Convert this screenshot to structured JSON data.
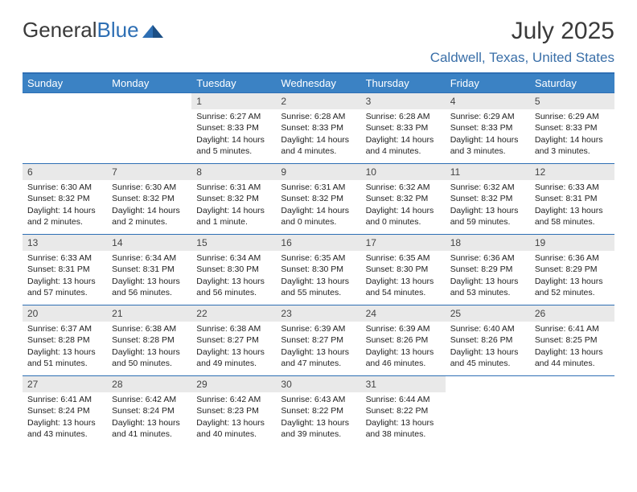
{
  "brand": {
    "part1": "General",
    "part2": "Blue",
    "text_color": "#3a3a3a",
    "accent_color": "#2e6fb4"
  },
  "title": "July 2025",
  "location": "Caldwell, Texas, United States",
  "colors": {
    "header_bg": "#3b82c4",
    "header_text": "#ffffff",
    "daynum_bg": "#e9e9e9",
    "border": "#2e6fb4",
    "location_text": "#3a6fa8"
  },
  "days_of_week": [
    "Sunday",
    "Monday",
    "Tuesday",
    "Wednesday",
    "Thursday",
    "Friday",
    "Saturday"
  ],
  "weeks": [
    [
      {
        "n": "",
        "sr": "",
        "ss": "",
        "dl": ""
      },
      {
        "n": "",
        "sr": "",
        "ss": "",
        "dl": ""
      },
      {
        "n": "1",
        "sr": "Sunrise: 6:27 AM",
        "ss": "Sunset: 8:33 PM",
        "dl": "Daylight: 14 hours and 5 minutes."
      },
      {
        "n": "2",
        "sr": "Sunrise: 6:28 AM",
        "ss": "Sunset: 8:33 PM",
        "dl": "Daylight: 14 hours and 4 minutes."
      },
      {
        "n": "3",
        "sr": "Sunrise: 6:28 AM",
        "ss": "Sunset: 8:33 PM",
        "dl": "Daylight: 14 hours and 4 minutes."
      },
      {
        "n": "4",
        "sr": "Sunrise: 6:29 AM",
        "ss": "Sunset: 8:33 PM",
        "dl": "Daylight: 14 hours and 3 minutes."
      },
      {
        "n": "5",
        "sr": "Sunrise: 6:29 AM",
        "ss": "Sunset: 8:33 PM",
        "dl": "Daylight: 14 hours and 3 minutes."
      }
    ],
    [
      {
        "n": "6",
        "sr": "Sunrise: 6:30 AM",
        "ss": "Sunset: 8:32 PM",
        "dl": "Daylight: 14 hours and 2 minutes."
      },
      {
        "n": "7",
        "sr": "Sunrise: 6:30 AM",
        "ss": "Sunset: 8:32 PM",
        "dl": "Daylight: 14 hours and 2 minutes."
      },
      {
        "n": "8",
        "sr": "Sunrise: 6:31 AM",
        "ss": "Sunset: 8:32 PM",
        "dl": "Daylight: 14 hours and 1 minute."
      },
      {
        "n": "9",
        "sr": "Sunrise: 6:31 AM",
        "ss": "Sunset: 8:32 PM",
        "dl": "Daylight: 14 hours and 0 minutes."
      },
      {
        "n": "10",
        "sr": "Sunrise: 6:32 AM",
        "ss": "Sunset: 8:32 PM",
        "dl": "Daylight: 14 hours and 0 minutes."
      },
      {
        "n": "11",
        "sr": "Sunrise: 6:32 AM",
        "ss": "Sunset: 8:32 PM",
        "dl": "Daylight: 13 hours and 59 minutes."
      },
      {
        "n": "12",
        "sr": "Sunrise: 6:33 AM",
        "ss": "Sunset: 8:31 PM",
        "dl": "Daylight: 13 hours and 58 minutes."
      }
    ],
    [
      {
        "n": "13",
        "sr": "Sunrise: 6:33 AM",
        "ss": "Sunset: 8:31 PM",
        "dl": "Daylight: 13 hours and 57 minutes."
      },
      {
        "n": "14",
        "sr": "Sunrise: 6:34 AM",
        "ss": "Sunset: 8:31 PM",
        "dl": "Daylight: 13 hours and 56 minutes."
      },
      {
        "n": "15",
        "sr": "Sunrise: 6:34 AM",
        "ss": "Sunset: 8:30 PM",
        "dl": "Daylight: 13 hours and 56 minutes."
      },
      {
        "n": "16",
        "sr": "Sunrise: 6:35 AM",
        "ss": "Sunset: 8:30 PM",
        "dl": "Daylight: 13 hours and 55 minutes."
      },
      {
        "n": "17",
        "sr": "Sunrise: 6:35 AM",
        "ss": "Sunset: 8:30 PM",
        "dl": "Daylight: 13 hours and 54 minutes."
      },
      {
        "n": "18",
        "sr": "Sunrise: 6:36 AM",
        "ss": "Sunset: 8:29 PM",
        "dl": "Daylight: 13 hours and 53 minutes."
      },
      {
        "n": "19",
        "sr": "Sunrise: 6:36 AM",
        "ss": "Sunset: 8:29 PM",
        "dl": "Daylight: 13 hours and 52 minutes."
      }
    ],
    [
      {
        "n": "20",
        "sr": "Sunrise: 6:37 AM",
        "ss": "Sunset: 8:28 PM",
        "dl": "Daylight: 13 hours and 51 minutes."
      },
      {
        "n": "21",
        "sr": "Sunrise: 6:38 AM",
        "ss": "Sunset: 8:28 PM",
        "dl": "Daylight: 13 hours and 50 minutes."
      },
      {
        "n": "22",
        "sr": "Sunrise: 6:38 AM",
        "ss": "Sunset: 8:27 PM",
        "dl": "Daylight: 13 hours and 49 minutes."
      },
      {
        "n": "23",
        "sr": "Sunrise: 6:39 AM",
        "ss": "Sunset: 8:27 PM",
        "dl": "Daylight: 13 hours and 47 minutes."
      },
      {
        "n": "24",
        "sr": "Sunrise: 6:39 AM",
        "ss": "Sunset: 8:26 PM",
        "dl": "Daylight: 13 hours and 46 minutes."
      },
      {
        "n": "25",
        "sr": "Sunrise: 6:40 AM",
        "ss": "Sunset: 8:26 PM",
        "dl": "Daylight: 13 hours and 45 minutes."
      },
      {
        "n": "26",
        "sr": "Sunrise: 6:41 AM",
        "ss": "Sunset: 8:25 PM",
        "dl": "Daylight: 13 hours and 44 minutes."
      }
    ],
    [
      {
        "n": "27",
        "sr": "Sunrise: 6:41 AM",
        "ss": "Sunset: 8:24 PM",
        "dl": "Daylight: 13 hours and 43 minutes."
      },
      {
        "n": "28",
        "sr": "Sunrise: 6:42 AM",
        "ss": "Sunset: 8:24 PM",
        "dl": "Daylight: 13 hours and 41 minutes."
      },
      {
        "n": "29",
        "sr": "Sunrise: 6:42 AM",
        "ss": "Sunset: 8:23 PM",
        "dl": "Daylight: 13 hours and 40 minutes."
      },
      {
        "n": "30",
        "sr": "Sunrise: 6:43 AM",
        "ss": "Sunset: 8:22 PM",
        "dl": "Daylight: 13 hours and 39 minutes."
      },
      {
        "n": "31",
        "sr": "Sunrise: 6:44 AM",
        "ss": "Sunset: 8:22 PM",
        "dl": "Daylight: 13 hours and 38 minutes."
      },
      {
        "n": "",
        "sr": "",
        "ss": "",
        "dl": ""
      },
      {
        "n": "",
        "sr": "",
        "ss": "",
        "dl": ""
      }
    ]
  ]
}
